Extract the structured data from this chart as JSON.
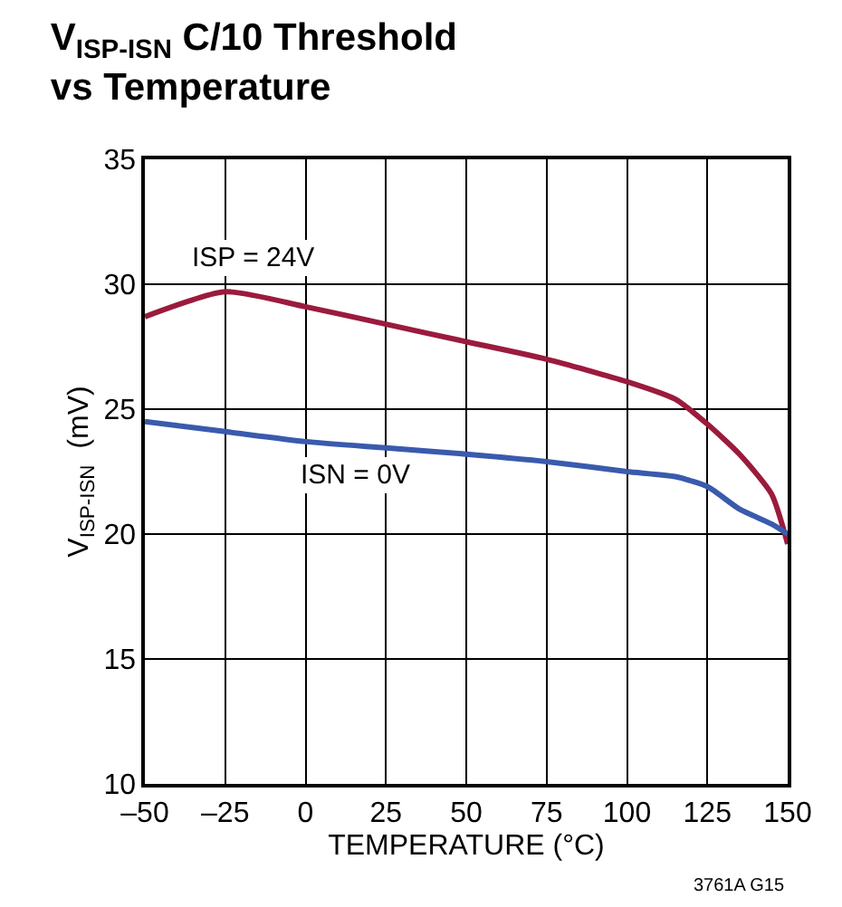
{
  "chart_data": {
    "type": "line",
    "title": "V$_{ISP-ISN}$ C/10 Threshold\nvs Temperature",
    "xlabel": "TEMPERATURE (°C)",
    "ylabel": "V$_{ISP-ISN}$  (mV)",
    "x": [
      -50,
      -25,
      0,
      25,
      50,
      75,
      100,
      115,
      125,
      135,
      145,
      150
    ],
    "series": [
      {
        "name": "ISP = 24V",
        "color": "#9b1b3d",
        "values": [
          28.7,
          29.7,
          29.1,
          28.4,
          27.7,
          27.0,
          26.1,
          25.4,
          24.4,
          23.2,
          21.6,
          19.6
        ]
      },
      {
        "name": "ISN = 0V",
        "color": "#3a5aad",
        "values": [
          24.5,
          24.1,
          23.7,
          23.45,
          23.2,
          22.9,
          22.5,
          22.3,
          21.9,
          21.0,
          20.4,
          20.0
        ]
      }
    ],
    "xlim": [
      -50,
      150
    ],
    "xticks": [
      {
        "value": -50,
        "label": "–50"
      },
      {
        "value": -25,
        "label": "–25"
      },
      0,
      25,
      50,
      75,
      100,
      125,
      150
    ],
    "ylim": [
      10,
      35
    ],
    "yticks": [
      10,
      15,
      20,
      25,
      30,
      35
    ],
    "grid": true,
    "legend": false,
    "marker": "none",
    "line_style": "solid",
    "annotations": [
      "3761A G15"
    ]
  }
}
